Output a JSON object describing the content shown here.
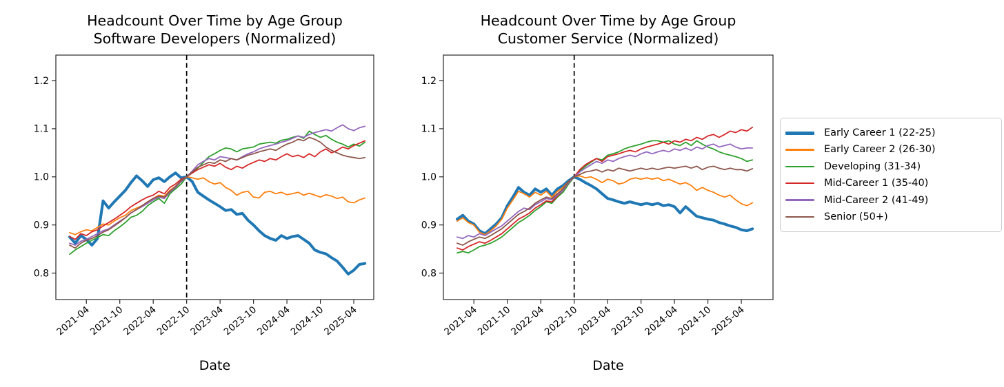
{
  "figure_background": "#ffffff",
  "accent_colors": {
    "blue": "#1f77b4",
    "orange": "#ff7f0e",
    "green": "#2ca02c",
    "red": "#d62728",
    "purple": "#9467bd",
    "brown": "#8c564b",
    "vline": "#000000",
    "legend_border": "#cccccc"
  },
  "chart_data": [
    {
      "type": "line",
      "title": "Headcount Over Time by Age Group",
      "subtitle": "Software Developers (Normalized)",
      "xlabel": "Date",
      "ylim": [
        0.745,
        1.253
      ],
      "yticks": [
        0.8,
        0.9,
        1.0,
        1.1,
        1.2
      ],
      "x_tick_labels": [
        "2021-04",
        "2021-10",
        "2022-04",
        "2022-10",
        "2023-04",
        "2023-10",
        "2024-04",
        "2024-10",
        "2025-04"
      ],
      "vline_x": "2022-10",
      "grid": false,
      "x": [
        "2021-01",
        "2021-02",
        "2021-03",
        "2021-04",
        "2021-05",
        "2021-06",
        "2021-07",
        "2021-08",
        "2021-09",
        "2021-10",
        "2021-11",
        "2021-12",
        "2022-01",
        "2022-02",
        "2022-03",
        "2022-04",
        "2022-05",
        "2022-06",
        "2022-07",
        "2022-08",
        "2022-09",
        "2022-10",
        "2022-11",
        "2022-12",
        "2023-01",
        "2023-02",
        "2023-03",
        "2023-04",
        "2023-05",
        "2023-06",
        "2023-07",
        "2023-08",
        "2023-09",
        "2023-10",
        "2023-11",
        "2023-12",
        "2024-01",
        "2024-02",
        "2024-03",
        "2024-04",
        "2024-05",
        "2024-06",
        "2024-07",
        "2024-08",
        "2024-09",
        "2024-10",
        "2024-11",
        "2024-12",
        "2025-01",
        "2025-02",
        "2025-03",
        "2025-04",
        "2025-05",
        "2025-06"
      ],
      "series": [
        {
          "name": "Early Career 1 (22-25)",
          "color": "#1f77b4",
          "linewidth": 4,
          "values": [
            0.875,
            0.862,
            0.878,
            0.87,
            0.858,
            0.872,
            0.95,
            0.935,
            0.948,
            0.96,
            0.972,
            0.988,
            1.002,
            0.992,
            0.98,
            0.994,
            0.998,
            0.99,
            1.0,
            1.008,
            0.998,
            1.0,
            0.99,
            0.968,
            0.96,
            0.952,
            0.945,
            0.938,
            0.93,
            0.932,
            0.922,
            0.924,
            0.91,
            0.9,
            0.888,
            0.878,
            0.872,
            0.868,
            0.878,
            0.872,
            0.876,
            0.878,
            0.87,
            0.862,
            0.848,
            0.843,
            0.84,
            0.832,
            0.825,
            0.812,
            0.798,
            0.806,
            0.818,
            0.82
          ]
        },
        {
          "name": "Early Career 2 (26-30)",
          "color": "#ff7f0e",
          "linewidth": 1.8,
          "values": [
            0.884,
            0.88,
            0.886,
            0.89,
            0.888,
            0.895,
            0.902,
            0.9,
            0.908,
            0.915,
            0.92,
            0.93,
            0.935,
            0.94,
            0.948,
            0.955,
            0.962,
            0.96,
            0.972,
            0.98,
            0.992,
            1.0,
            0.998,
            0.995,
            0.998,
            0.99,
            0.985,
            0.988,
            0.978,
            0.972,
            0.962,
            0.968,
            0.97,
            0.958,
            0.956,
            0.968,
            0.97,
            0.965,
            0.968,
            0.963,
            0.965,
            0.968,
            0.962,
            0.966,
            0.962,
            0.958,
            0.963,
            0.96,
            0.955,
            0.958,
            0.948,
            0.946,
            0.952,
            0.956
          ]
        },
        {
          "name": "Developing (31-34)",
          "color": "#2ca02c",
          "linewidth": 1.8,
          "values": [
            0.839,
            0.848,
            0.855,
            0.862,
            0.868,
            0.874,
            0.88,
            0.878,
            0.888,
            0.896,
            0.905,
            0.916,
            0.92,
            0.928,
            0.94,
            0.948,
            0.955,
            0.945,
            0.965,
            0.975,
            0.985,
            1.0,
            1.01,
            1.018,
            1.03,
            1.042,
            1.048,
            1.055,
            1.06,
            1.058,
            1.052,
            1.058,
            1.06,
            1.062,
            1.068,
            1.07,
            1.072,
            1.07,
            1.076,
            1.078,
            1.082,
            1.085,
            1.08,
            1.095,
            1.088,
            1.082,
            1.086,
            1.078,
            1.072,
            1.068,
            1.062,
            1.068,
            1.064,
            1.072
          ]
        },
        {
          "name": "Mid-Career 1 (35-40)",
          "color": "#d62728",
          "linewidth": 1.8,
          "values": [
            0.876,
            0.87,
            0.882,
            0.878,
            0.886,
            0.89,
            0.898,
            0.905,
            0.912,
            0.92,
            0.928,
            0.938,
            0.945,
            0.952,
            0.958,
            0.962,
            0.97,
            0.965,
            0.978,
            0.985,
            0.995,
            1.0,
            1.008,
            1.015,
            1.02,
            1.025,
            1.022,
            1.028,
            1.02,
            1.015,
            1.022,
            1.018,
            1.025,
            1.03,
            1.035,
            1.032,
            1.038,
            1.035,
            1.042,
            1.048,
            1.042,
            1.045,
            1.04,
            1.048,
            1.042,
            1.052,
            1.058,
            1.05,
            1.055,
            1.062,
            1.058,
            1.065,
            1.07,
            1.075
          ]
        },
        {
          "name": "Mid-Career 2 (41-49)",
          "color": "#9467bd",
          "linewidth": 1.8,
          "values": [
            0.862,
            0.858,
            0.866,
            0.87,
            0.876,
            0.882,
            0.888,
            0.892,
            0.9,
            0.908,
            0.915,
            0.925,
            0.932,
            0.938,
            0.945,
            0.952,
            0.958,
            0.955,
            0.968,
            0.978,
            0.99,
            1.0,
            1.012,
            1.025,
            1.032,
            1.038,
            1.035,
            1.042,
            1.04,
            1.038,
            1.035,
            1.042,
            1.048,
            1.052,
            1.058,
            1.062,
            1.065,
            1.068,
            1.072,
            1.075,
            1.08,
            1.085,
            1.082,
            1.088,
            1.092,
            1.095,
            1.098,
            1.095,
            1.102,
            1.108,
            1.1,
            1.096,
            1.102,
            1.105
          ]
        },
        {
          "name": "Senior (50+)",
          "color": "#8c564b",
          "linewidth": 1.8,
          "values": [
            0.858,
            0.852,
            0.862,
            0.868,
            0.872,
            0.878,
            0.885,
            0.89,
            0.898,
            0.906,
            0.915,
            0.925,
            0.932,
            0.94,
            0.948,
            0.955,
            0.96,
            0.958,
            0.97,
            0.98,
            0.992,
            1.0,
            1.01,
            1.02,
            1.025,
            1.03,
            1.028,
            1.035,
            1.032,
            1.038,
            1.035,
            1.04,
            1.045,
            1.048,
            1.052,
            1.055,
            1.058,
            1.055,
            1.062,
            1.068,
            1.072,
            1.078,
            1.075,
            1.082,
            1.078,
            1.072,
            1.062,
            1.055,
            1.05,
            1.045,
            1.042,
            1.04,
            1.038,
            1.04
          ]
        }
      ]
    },
    {
      "type": "line",
      "title": "Headcount Over Time by Age Group",
      "subtitle": "Customer Service (Normalized)",
      "xlabel": "Date",
      "ylim": [
        0.745,
        1.253
      ],
      "yticks": [
        0.8,
        0.9,
        1.0,
        1.1,
        1.2
      ],
      "x_tick_labels": [
        "2021-04",
        "2021-10",
        "2022-04",
        "2022-10",
        "2023-04",
        "2023-10",
        "2024-04",
        "2024-10",
        "2025-04"
      ],
      "vline_x": "2022-10",
      "grid": false,
      "x": [
        "2021-01",
        "2021-02",
        "2021-03",
        "2021-04",
        "2021-05",
        "2021-06",
        "2021-07",
        "2021-08",
        "2021-09",
        "2021-10",
        "2021-11",
        "2021-12",
        "2022-01",
        "2022-02",
        "2022-03",
        "2022-04",
        "2022-05",
        "2022-06",
        "2022-07",
        "2022-08",
        "2022-09",
        "2022-10",
        "2022-11",
        "2022-12",
        "2023-01",
        "2023-02",
        "2023-03",
        "2023-04",
        "2023-05",
        "2023-06",
        "2023-07",
        "2023-08",
        "2023-09",
        "2023-10",
        "2023-11",
        "2023-12",
        "2024-01",
        "2024-02",
        "2024-03",
        "2024-04",
        "2024-05",
        "2024-06",
        "2024-07",
        "2024-08",
        "2024-09",
        "2024-10",
        "2024-11",
        "2024-12",
        "2025-01",
        "2025-02",
        "2025-03",
        "2025-04",
        "2025-05",
        "2025-06"
      ],
      "series": [
        {
          "name": "Early Career 1 (22-25)",
          "color": "#1f77b4",
          "linewidth": 4,
          "values": [
            0.912,
            0.92,
            0.908,
            0.902,
            0.888,
            0.882,
            0.892,
            0.902,
            0.915,
            0.94,
            0.958,
            0.978,
            0.968,
            0.962,
            0.975,
            0.968,
            0.975,
            0.962,
            0.975,
            0.982,
            0.992,
            1.0,
            0.995,
            0.988,
            0.982,
            0.975,
            0.965,
            0.955,
            0.952,
            0.948,
            0.945,
            0.948,
            0.945,
            0.942,
            0.945,
            0.942,
            0.945,
            0.94,
            0.942,
            0.938,
            0.925,
            0.938,
            0.928,
            0.918,
            0.915,
            0.912,
            0.91,
            0.905,
            0.902,
            0.898,
            0.895,
            0.89,
            0.888,
            0.892
          ]
        },
        {
          "name": "Early Career 2 (26-30)",
          "color": "#ff7f0e",
          "linewidth": 1.8,
          "values": [
            0.908,
            0.915,
            0.905,
            0.9,
            0.885,
            0.88,
            0.888,
            0.898,
            0.912,
            0.935,
            0.952,
            0.97,
            0.965,
            0.958,
            0.968,
            0.962,
            0.97,
            0.958,
            0.97,
            0.978,
            0.99,
            1.0,
            1.002,
            0.998,
            1.0,
            0.995,
            0.988,
            0.995,
            0.992,
            0.985,
            0.988,
            0.995,
            0.998,
            0.995,
            0.998,
            0.995,
            0.998,
            0.992,
            0.995,
            0.99,
            0.985,
            0.988,
            0.982,
            0.972,
            0.978,
            0.972,
            0.968,
            0.962,
            0.958,
            0.962,
            0.952,
            0.944,
            0.94,
            0.946
          ]
        },
        {
          "name": "Developing (31-34)",
          "color": "#2ca02c",
          "linewidth": 1.8,
          "values": [
            0.842,
            0.845,
            0.842,
            0.848,
            0.855,
            0.858,
            0.862,
            0.868,
            0.875,
            0.885,
            0.895,
            0.905,
            0.912,
            0.92,
            0.93,
            0.938,
            0.948,
            0.945,
            0.958,
            0.968,
            0.985,
            1.0,
            1.012,
            1.022,
            1.03,
            1.038,
            1.035,
            1.045,
            1.048,
            1.052,
            1.058,
            1.062,
            1.065,
            1.068,
            1.072,
            1.075,
            1.075,
            1.072,
            1.075,
            1.068,
            1.065,
            1.072,
            1.065,
            1.075,
            1.068,
            1.062,
            1.058,
            1.052,
            1.048,
            1.045,
            1.042,
            1.038,
            1.032,
            1.035
          ]
        },
        {
          "name": "Mid-Career 1 (35-40)",
          "color": "#d62728",
          "linewidth": 1.8,
          "values": [
            0.852,
            0.848,
            0.855,
            0.86,
            0.865,
            0.862,
            0.868,
            0.875,
            0.882,
            0.892,
            0.902,
            0.912,
            0.918,
            0.925,
            0.935,
            0.942,
            0.95,
            0.948,
            0.96,
            0.972,
            0.988,
            1.0,
            1.015,
            1.025,
            1.032,
            1.038,
            1.032,
            1.042,
            1.045,
            1.048,
            1.052,
            1.055,
            1.052,
            1.058,
            1.062,
            1.065,
            1.068,
            1.072,
            1.068,
            1.075,
            1.072,
            1.078,
            1.075,
            1.082,
            1.078,
            1.085,
            1.088,
            1.082,
            1.088,
            1.095,
            1.092,
            1.098,
            1.095,
            1.103
          ]
        },
        {
          "name": "Mid-Career 2 (41-49)",
          "color": "#9467bd",
          "linewidth": 1.8,
          "values": [
            0.875,
            0.872,
            0.878,
            0.875,
            0.882,
            0.878,
            0.885,
            0.892,
            0.898,
            0.908,
            0.918,
            0.928,
            0.935,
            0.932,
            0.942,
            0.948,
            0.955,
            0.952,
            0.962,
            0.972,
            0.988,
            1.0,
            1.01,
            1.018,
            1.025,
            1.032,
            1.028,
            1.035,
            1.032,
            1.038,
            1.042,
            1.045,
            1.042,
            1.048,
            1.052,
            1.048,
            1.052,
            1.055,
            1.052,
            1.058,
            1.055,
            1.06,
            1.055,
            1.062,
            1.058,
            1.065,
            1.068,
            1.062,
            1.065,
            1.068,
            1.062,
            1.058,
            1.06,
            1.06
          ]
        },
        {
          "name": "Senior (50+)",
          "color": "#8c564b",
          "linewidth": 1.8,
          "values": [
            0.862,
            0.858,
            0.865,
            0.87,
            0.875,
            0.872,
            0.878,
            0.885,
            0.892,
            0.902,
            0.912,
            0.922,
            0.928,
            0.935,
            0.945,
            0.952,
            0.958,
            0.955,
            0.965,
            0.975,
            0.99,
            1.0,
            1.005,
            1.01,
            1.012,
            1.015,
            1.01,
            1.015,
            1.012,
            1.018,
            1.015,
            1.012,
            1.015,
            1.018,
            1.015,
            1.018,
            1.015,
            1.018,
            1.02,
            1.018,
            1.02,
            1.022,
            1.018,
            1.022,
            1.015,
            1.02,
            1.022,
            1.018,
            1.015,
            1.018,
            1.015,
            1.015,
            1.012,
            1.017
          ]
        }
      ]
    }
  ],
  "legend": {
    "entries": [
      {
        "label": "Early Career 1 (22-25)",
        "color": "#1f77b4",
        "thick": true
      },
      {
        "label": "Early Career 2 (26-30)",
        "color": "#ff7f0e",
        "thick": false
      },
      {
        "label": "Developing (31-34)",
        "color": "#2ca02c",
        "thick": false
      },
      {
        "label": "Mid-Career 1 (35-40)",
        "color": "#d62728",
        "thick": false
      },
      {
        "label": "Mid-Career 2 (41-49)",
        "color": "#9467bd",
        "thick": false
      },
      {
        "label": "Senior (50+)",
        "color": "#8c564b",
        "thick": false
      }
    ]
  }
}
